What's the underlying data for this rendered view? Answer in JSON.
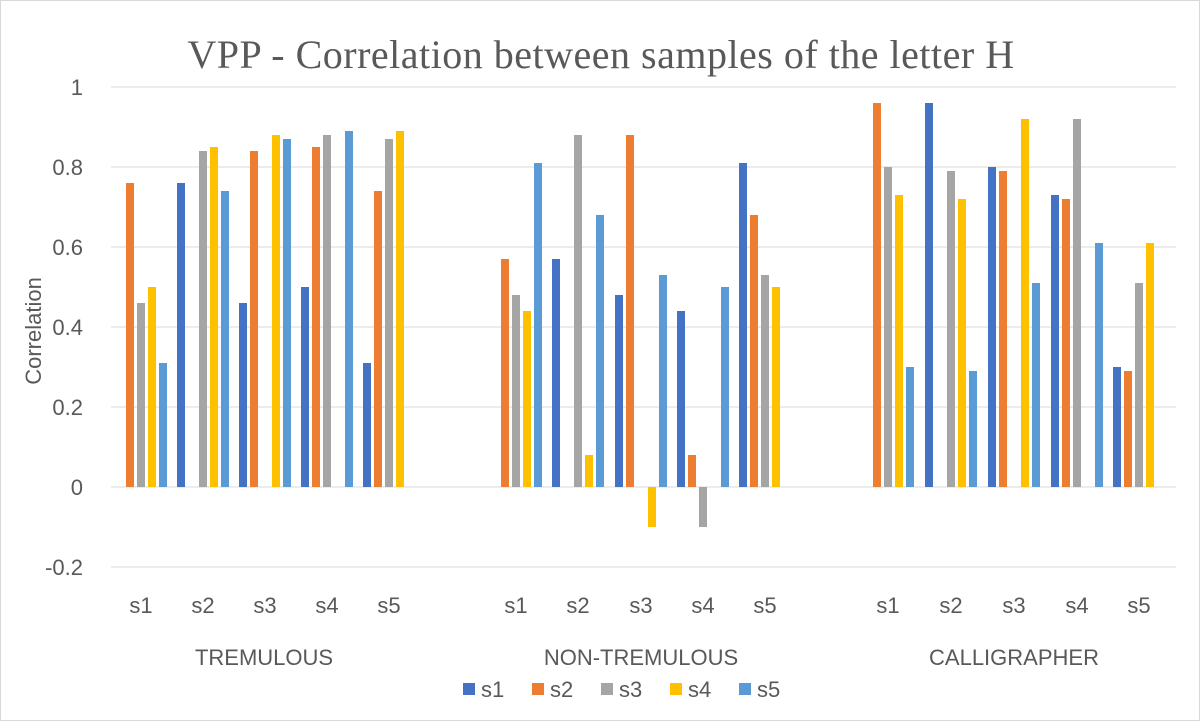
{
  "chart_data": {
    "type": "bar",
    "title": "VPP - Correlation between samples of the letter H",
    "xlabel": "",
    "ylabel": "Correlation",
    "ylim": [
      -0.2,
      1
    ],
    "yticks": [
      -0.2,
      0,
      0.2,
      0.4,
      0.6,
      0.8,
      1
    ],
    "ytick_labels": [
      "-0.2",
      "0",
      "0.2",
      "0.4",
      "0.6",
      "0.8",
      "1"
    ],
    "grid": true,
    "legend_position": "bottom",
    "groups": [
      {
        "name": "TREMULOUS",
        "categories": [
          "s1",
          "s2",
          "s3",
          "s4",
          "s5"
        ]
      },
      {
        "name": "NON-TREMULOUS",
        "categories": [
          "s1",
          "s2",
          "s3",
          "s4",
          "s5"
        ]
      },
      {
        "name": "CALLIGRAPHER",
        "categories": [
          "s1",
          "s2",
          "s3",
          "s4",
          "s5"
        ]
      }
    ],
    "series": [
      {
        "name": "s1",
        "color": "#4472C4",
        "values": [
          [
            null,
            0.76,
            0.46,
            0.5,
            0.31
          ],
          [
            null,
            0.57,
            0.48,
            0.44,
            0.81
          ],
          [
            null,
            0.96,
            0.8,
            0.73,
            0.3
          ]
        ]
      },
      {
        "name": "s2",
        "color": "#ED7D31",
        "values": [
          [
            0.76,
            null,
            0.84,
            0.85,
            0.74
          ],
          [
            0.57,
            null,
            0.88,
            0.08,
            0.68
          ],
          [
            0.96,
            null,
            0.79,
            0.72,
            0.29
          ]
        ]
      },
      {
        "name": "s3",
        "color": "#A5A5A5",
        "values": [
          [
            0.46,
            0.84,
            null,
            0.88,
            0.87
          ],
          [
            0.48,
            0.88,
            null,
            -0.1,
            0.53
          ],
          [
            0.8,
            0.79,
            null,
            0.92,
            0.51
          ]
        ]
      },
      {
        "name": "s4",
        "color": "#FFC000",
        "values": [
          [
            0.5,
            0.85,
            0.88,
            null,
            0.89
          ],
          [
            0.44,
            0.08,
            -0.1,
            null,
            0.5
          ],
          [
            0.73,
            0.72,
            0.92,
            null,
            0.61
          ]
        ]
      },
      {
        "name": "s5",
        "color": "#5B9BD5",
        "values": [
          [
            0.31,
            0.74,
            0.87,
            0.89,
            null
          ],
          [
            0.81,
            0.68,
            0.53,
            0.5,
            null
          ],
          [
            0.3,
            0.29,
            0.51,
            0.61,
            null
          ]
        ]
      }
    ]
  }
}
